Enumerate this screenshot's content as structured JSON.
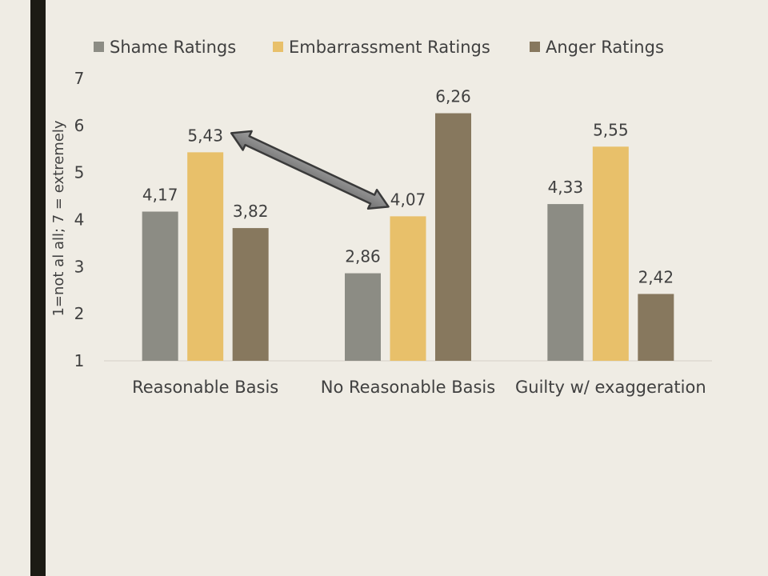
{
  "chart_data": {
    "type": "bar",
    "categories": [
      "Reasonable Basis",
      "No Reasonable Basis",
      "Guilty w/ exaggeration"
    ],
    "series": [
      {
        "name": "Shame Ratings",
        "values": [
          4.17,
          2.86,
          4.33
        ],
        "labels": [
          "4,17",
          "2,86",
          "4,33"
        ],
        "color": "#8c8c84"
      },
      {
        "name": "Embarrassment Ratings",
        "values": [
          5.43,
          4.07,
          5.55
        ],
        "labels": [
          "5,43",
          "4,07",
          "5,55"
        ],
        "color": "#e8c06a"
      },
      {
        "name": "Anger Ratings",
        "values": [
          3.82,
          6.26,
          2.42
        ],
        "labels": [
          "3,82",
          "6,26",
          "2,42"
        ],
        "color": "#87785e"
      }
    ],
    "ylabel": "1=not al all; 7 = extremely",
    "ylim": [
      1,
      7
    ],
    "yticks": [
      "1",
      "2",
      "3",
      "4",
      "5",
      "6",
      "7"
    ],
    "grid": false,
    "legend_position": "top",
    "annotation": {
      "type": "double-arrow",
      "from": {
        "category": "Reasonable Basis",
        "series": "Embarrassment Ratings"
      },
      "to": {
        "category": "No Reasonable Basis",
        "series": "Embarrassment Ratings"
      },
      "color": "#808080"
    }
  }
}
